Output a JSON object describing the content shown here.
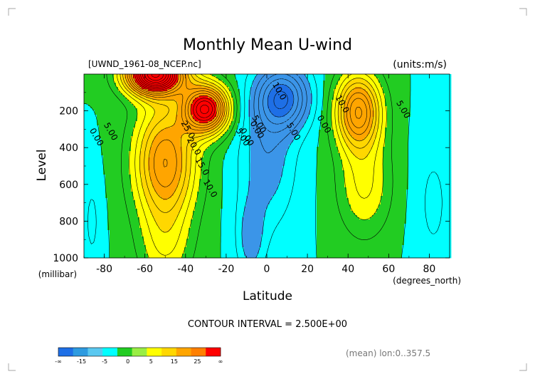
{
  "chart_data": {
    "type": "heatmap",
    "subtype": "filled-contour",
    "title": "Monthly Mean U-wind",
    "dataset_label": "[UWND_1961-08_NCEP.nc]",
    "units_label": "(units:m/s)",
    "xlabel": "Latitude",
    "xunits": "(degrees_north)",
    "ylabel": "Level",
    "yunits": "(millibar)",
    "xlim": [
      -90,
      90
    ],
    "ylim": [
      1000,
      0
    ],
    "x_ticks": [
      -80,
      -60,
      -40,
      -20,
      0,
      20,
      40,
      60,
      80
    ],
    "y_ticks": [
      200,
      400,
      600,
      800,
      1000
    ],
    "contour_interval_text": "CONTOUR INTERVAL = 2.500E+00",
    "contour_interval": 2.5,
    "footer_note": "(mean) lon:0..357.5",
    "contour_labels": [
      {
        "text": "0.00",
        "lat": -85,
        "lev": 350
      },
      {
        "text": "5.00",
        "lat": -78,
        "lev": 320
      },
      {
        "text": "25.0",
        "lat": -40,
        "lev": 310
      },
      {
        "text": "20.0",
        "lat": -37,
        "lev": 400
      },
      {
        "text": "15.0",
        "lat": -33,
        "lev": 510
      },
      {
        "text": "10.0",
        "lat": -29,
        "lev": 630
      },
      {
        "text": "5.00",
        "lat": -13,
        "lev": 350
      },
      {
        "text": "0.00",
        "lat": -11,
        "lev": 350
      },
      {
        "text": "0.00",
        "lat": -6,
        "lev": 310
      },
      {
        "text": "5.00",
        "lat": -5,
        "lev": 280
      },
      {
        "text": "5.00",
        "lat": 12,
        "lev": 320
      },
      {
        "text": "0.00",
        "lat": 27,
        "lev": 280
      },
      {
        "text": "10.0",
        "lat": 5,
        "lev": 100
      },
      {
        "text": "10.0",
        "lat": 36,
        "lev": 170
      },
      {
        "text": "5.00",
        "lat": 66,
        "lev": 200
      }
    ],
    "field_features": [
      {
        "name": "southern subtropical jet",
        "lat": -30,
        "lev": 190,
        "peak": 32,
        "width_lat": 11,
        "width_lev": 130
      },
      {
        "name": "southern polar night jet",
        "lat": -55,
        "lev": 0,
        "peak": 44,
        "width_lat": 14,
        "width_lev": 110
      },
      {
        "name": "southern jet mid-level extension",
        "lat": -50,
        "lev": 480,
        "peak": 20,
        "width_lat": 15,
        "width_lev": 320
      },
      {
        "name": "southern surface westerlies",
        "lat": -50,
        "lev": 950,
        "peak": 6,
        "width_lat": 13,
        "width_lev": 230
      },
      {
        "name": "northern jet",
        "lat": 45,
        "lev": 200,
        "peak": 22,
        "width_lat": 11,
        "width_lev": 200
      },
      {
        "name": "northern jet lower extension",
        "lat": 48,
        "lev": 600,
        "peak": 8,
        "width_lat": 13,
        "width_lev": 280
      },
      {
        "name": "tropical easterlies",
        "lat": 8,
        "lev": 130,
        "peak": -16,
        "width_lat": 13,
        "width_lev": 170
      },
      {
        "name": "tropical mid-level easterlies",
        "lat": 0,
        "lev": 450,
        "peak": -7,
        "width_lat": 14,
        "width_lev": 380
      },
      {
        "name": "equatorial surface easterlies",
        "lat": -8,
        "lev": 900,
        "peak": -6,
        "width_lat": 7,
        "width_lev": 220
      },
      {
        "name": "arctic lower easterlies",
        "lat": 82,
        "lev": 700,
        "peak": -3,
        "width_lat": 10,
        "width_lev": 400
      },
      {
        "name": "antarctic surface easterlies",
        "lat": -86,
        "lev": 800,
        "peak": -3,
        "width_lat": 5,
        "width_lev": 300
      }
    ],
    "colorbar": {
      "labels": [
        "-∞",
        "-15",
        "-5",
        "0",
        "5",
        "15",
        "25",
        "∞"
      ],
      "colors": [
        "#1e6fe6",
        "#2e9be0",
        "#5ac8f0",
        "#00ffff",
        "#22cc22",
        "#99ee44",
        "#ffff00",
        "#ffd700",
        "#ffa500",
        "#ff7f00",
        "#ff0000"
      ]
    },
    "level_colors": [
      {
        "min": -99,
        "max": -15,
        "color": "#1e6fe6"
      },
      {
        "min": -15,
        "max": -5,
        "color": "#3b95e8"
      },
      {
        "min": -5,
        "max": 0,
        "color": "#00ffff"
      },
      {
        "min": 0,
        "max": 5,
        "color": "#22cc22"
      },
      {
        "min": 5,
        "max": 10,
        "color": "#ffff00"
      },
      {
        "min": 10,
        "max": 15,
        "color": "#ffd700"
      },
      {
        "min": 15,
        "max": 25,
        "color": "#ffa500"
      },
      {
        "min": 25,
        "max": 99,
        "color": "#ff0000"
      }
    ]
  }
}
